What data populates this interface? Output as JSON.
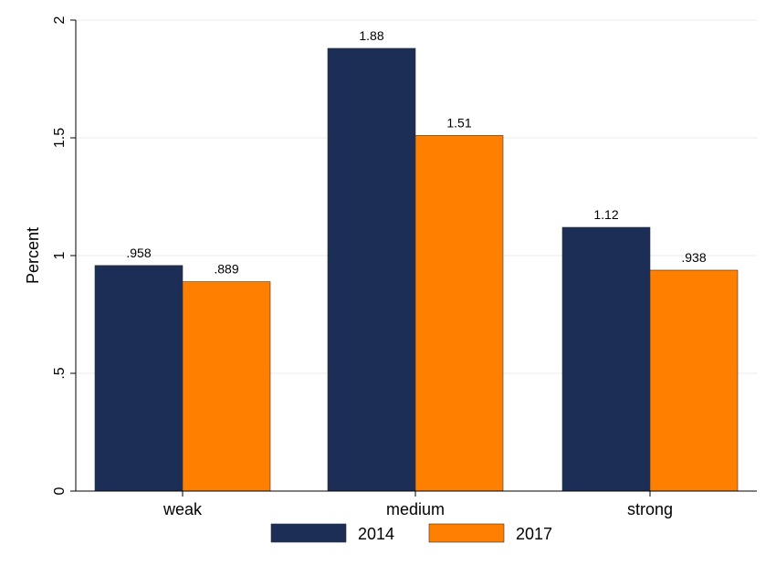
{
  "chart_data": {
    "type": "bar",
    "categories": [
      "weak",
      "medium",
      "strong"
    ],
    "series": [
      {
        "name": "2014",
        "values": [
          0.958,
          1.88,
          1.12
        ],
        "labels": [
          ".958",
          "1.88",
          "1.12"
        ],
        "color": "#1c2e56"
      },
      {
        "name": "2017",
        "values": [
          0.889,
          1.51,
          0.938
        ],
        "labels": [
          ".889",
          "1.51",
          ".938"
        ],
        "color": "#ff8000"
      }
    ],
    "title": "",
    "xlabel": "",
    "ylabel": "Percent",
    "ylim": [
      0,
      2
    ],
    "yticks": [
      0,
      0.5,
      1,
      1.5,
      2
    ],
    "ytick_labels": [
      "0",
      ".5",
      "1",
      "1.5",
      "2"
    ],
    "grid": true,
    "legend_position": "bottom"
  }
}
